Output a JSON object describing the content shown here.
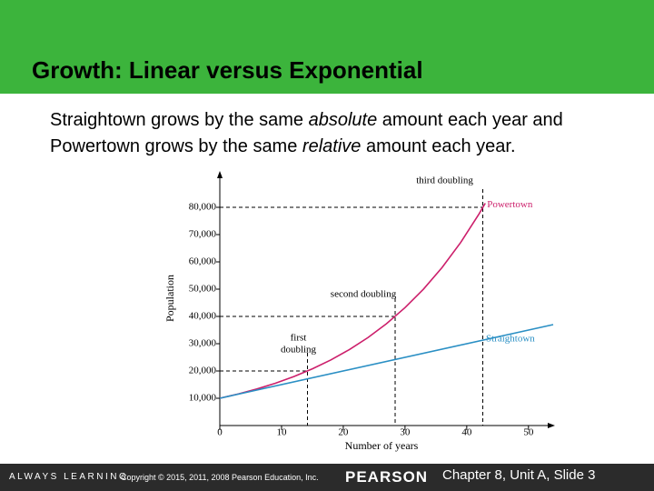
{
  "title": "Growth: Linear versus Exponential",
  "body": [
    "Straightown grows by the same ",
    "absolute",
    " amount each year and Powertown grows by the same ",
    "relative",
    " amount each year."
  ],
  "footer": {
    "tagline": "ALWAYS LEARNING",
    "copyright": "Copyright © 2015, 2011, 2008 Pearson Education, Inc.",
    "brand": "PEARSON",
    "slide": "Chapter 8, Unit A,  Slide 3"
  },
  "chart_data": {
    "type": "line",
    "x_label": "Number of years",
    "y_label": "Population",
    "xlim": [
      0,
      54
    ],
    "ylim": [
      0,
      90000
    ],
    "xticks": [
      0,
      10,
      20,
      30,
      40,
      50
    ],
    "yticks": [
      {
        "value": 10000,
        "label": "10,000"
      },
      {
        "value": 20000,
        "label": "20,000"
      },
      {
        "value": 30000,
        "label": "30,000"
      },
      {
        "value": 40000,
        "label": "40,000"
      },
      {
        "value": 50000,
        "label": "50,000"
      },
      {
        "value": 60000,
        "label": "60,000"
      },
      {
        "value": 70000,
        "label": "70,000"
      },
      {
        "value": 80000,
        "label": "80,000"
      }
    ],
    "series": [
      {
        "name": "Powertown",
        "color": "#cc1f6b",
        "x": [
          0,
          3,
          6,
          9,
          12,
          15,
          18,
          21,
          24,
          27,
          30,
          33,
          36,
          39,
          42,
          43
        ],
        "values": [
          10000,
          11576,
          13401,
          15513,
          17959,
          20789,
          24066,
          27860,
          32251,
          37335,
          43219,
          50032,
          57918,
          67048,
          77616,
          81497
        ]
      },
      {
        "name": "Straightown",
        "color": "#2a8fc4",
        "x": [
          0,
          54
        ],
        "values": [
          10000,
          37000
        ]
      }
    ],
    "annotations": [
      {
        "text": [
          "first",
          "doubling"
        ],
        "x": 14.2,
        "y": 20000
      },
      {
        "text": [
          "second doubling"
        ],
        "x": 28.4,
        "y": 40000
      },
      {
        "text": [
          "third doubling"
        ],
        "x": 42.6,
        "y": 80000
      }
    ]
  }
}
